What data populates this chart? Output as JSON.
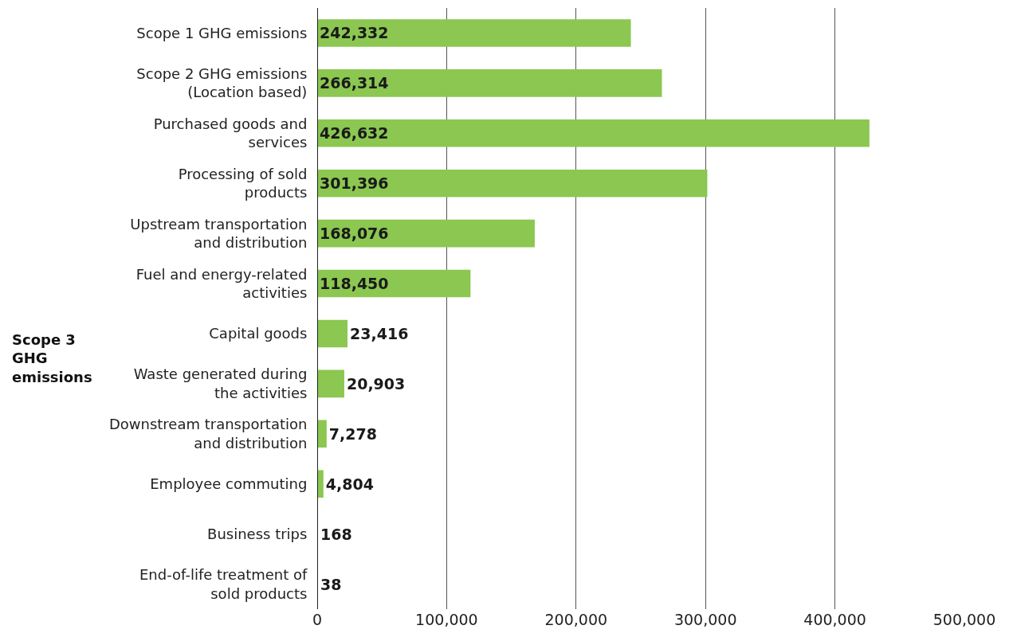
{
  "chart_data": {
    "type": "bar",
    "orientation": "horizontal",
    "categories": [
      "Scope 1 GHG emissions",
      "Scope 2 GHG emissions\n(Location based)",
      "Purchased goods and\nservices",
      "Processing of sold\nproducts",
      "Upstream transportation\nand distribution",
      "Fuel and energy-related\nactivities",
      "Capital goods",
      "Waste generated during\nthe activities",
      "Downstream transportation\nand distribution",
      "Employee commuting",
      "Business trips",
      "End-of-life treatment of\nsold products"
    ],
    "values": [
      242332,
      266314,
      426632,
      301396,
      168076,
      118450,
      23416,
      20903,
      7278,
      4804,
      168,
      38
    ],
    "color": "#8bc751",
    "xlim": [
      0,
      500000
    ],
    "xticks": [
      0,
      {
        "value": 100000,
        "label": "100,000"
      },
      {
        "value": 200000,
        "label": "200,000"
      },
      {
        "value": 300000,
        "label": "300,000"
      },
      {
        "value": 400000,
        "label": "400,000"
      },
      {
        "value": 500000,
        "label": "500,000"
      }
    ],
    "grid": "x",
    "value_labels": [
      "242,332",
      "266,314",
      "426,632",
      "301,396",
      "168,076",
      "118,450",
      "23,416",
      "20,903",
      "7,278",
      "4,804",
      "168",
      "38"
    ],
    "legend": false,
    "annotations": [
      "Scope 3\nGHG\nemissions"
    ]
  }
}
